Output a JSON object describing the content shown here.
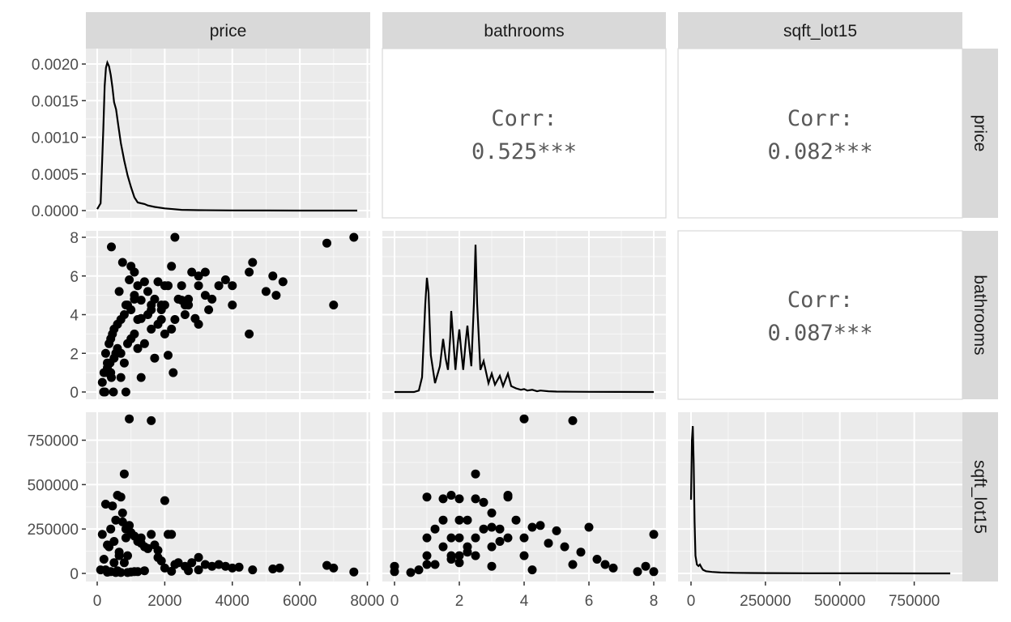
{
  "chart_data": {
    "type": "scatter",
    "layout": "pairs-matrix",
    "variables": [
      "price",
      "bathrooms",
      "sqft_lot15"
    ],
    "panel_background": "#ebebeb",
    "strip_background": "#d9d9d9",
    "grid_color": "#ffffff",
    "point_color": "#000000",
    "corr_text_color": "#595959",
    "axes": {
      "price": {
        "lim": [
          0,
          7700
        ],
        "ticks": [
          0,
          2000,
          4000,
          6000,
          8000
        ],
        "tick_labels": [
          "0",
          "2000",
          "4000",
          "6000",
          "8000"
        ],
        "density_lim": [
          0,
          0.0021
        ],
        "density_ticks": [
          0,
          0.0005,
          0.001,
          0.0015,
          0.002
        ],
        "density_tick_labels": [
          "0.0000",
          "0.0005",
          "0.0010",
          "0.0015",
          "0.0020"
        ]
      },
      "bathrooms": {
        "lim": [
          0,
          8
        ],
        "ticks": [
          0,
          2,
          4,
          6,
          8
        ],
        "tick_labels": [
          "0",
          "2",
          "4",
          "6",
          "8"
        ]
      },
      "sqft_lot15": {
        "lim": [
          0,
          871000
        ],
        "ticks": [
          0,
          250000,
          500000,
          750000
        ],
        "tick_labels": [
          "0",
          "250000",
          "500000",
          "750000"
        ]
      }
    },
    "correlations": [
      {
        "row": "price",
        "col": "bathrooms",
        "label": "Corr:",
        "value": "0.525***"
      },
      {
        "row": "price",
        "col": "sqft_lot15",
        "label": "Corr:",
        "value": "0.082***"
      },
      {
        "row": "bathrooms",
        "col": "sqft_lot15",
        "label": "Corr:",
        "value": "0.087***"
      }
    ],
    "densities": {
      "price": {
        "x": [
          0,
          100,
          180,
          220,
          260,
          300,
          350,
          400,
          450,
          500,
          560,
          620,
          700,
          800,
          900,
          1000,
          1100,
          1200,
          1300,
          1400,
          1500,
          1700,
          2000,
          2500,
          3000,
          4000,
          5000,
          6000,
          7700
        ],
        "y": [
          2e-05,
          0.0001,
          0.0011,
          0.0017,
          0.00195,
          0.00202,
          0.00197,
          0.00185,
          0.00168,
          0.00148,
          0.00138,
          0.00118,
          0.00092,
          0.00068,
          0.00048,
          0.00032,
          0.00018,
          0.00011,
          0.0001,
          9e-05,
          7e-05,
          5e-05,
          3e-05,
          1e-05,
          5e-06,
          2e-06,
          1e-06,
          5e-07,
          0
        ]
      },
      "bathrooms": {
        "x": [
          0,
          0.6,
          0.75,
          0.85,
          0.95,
          1.0,
          1.05,
          1.12,
          1.25,
          1.4,
          1.5,
          1.58,
          1.65,
          1.72,
          1.75,
          1.8,
          1.88,
          1.95,
          2.0,
          2.05,
          2.12,
          2.2,
          2.25,
          2.3,
          2.37,
          2.45,
          2.5,
          2.55,
          2.65,
          2.75,
          2.8,
          2.9,
          3.0,
          3.1,
          3.25,
          3.35,
          3.5,
          3.6,
          3.75,
          3.9,
          4.0,
          4.1,
          4.25,
          4.4,
          4.5,
          4.75,
          5.0,
          5.5,
          6.0,
          8.0
        ],
        "y": [
          0,
          0.0,
          0.02,
          0.2,
          1.2,
          1.55,
          1.35,
          0.5,
          0.12,
          0.35,
          0.72,
          0.45,
          0.3,
          0.75,
          1.1,
          0.8,
          0.3,
          0.65,
          0.85,
          0.6,
          0.3,
          0.7,
          0.9,
          0.65,
          0.35,
          1.2,
          2.0,
          1.2,
          0.3,
          0.42,
          0.32,
          0.12,
          0.25,
          0.1,
          0.22,
          0.08,
          0.25,
          0.08,
          0.05,
          0.03,
          0.04,
          0.02,
          0.03,
          0.01,
          0.02,
          0.01,
          0.005,
          0.003,
          0.002,
          0
        ]
      },
      "sqft_lot15": {
        "x": [
          0,
          3000,
          6000,
          9000,
          12000,
          15000,
          20000,
          25000,
          30000,
          35000,
          40000,
          50000,
          70000,
          100000,
          150000,
          200000,
          250000,
          400000,
          600000,
          871000
        ],
        "y": [
          0.5,
          0.9,
          1.0,
          0.75,
          0.35,
          0.12,
          0.06,
          0.05,
          0.06,
          0.04,
          0.025,
          0.015,
          0.01,
          0.006,
          0.004,
          0.003,
          0.002,
          0.001,
          0.0005,
          0
        ]
      }
    },
    "scatter": {
      "bathrooms_vs_price": {
        "x": [
          150,
          190,
          230,
          300,
          380,
          420,
          480,
          550,
          650,
          750,
          850,
          950,
          1000,
          1100,
          1200,
          1300,
          1400,
          1500,
          1600,
          1700,
          1800,
          1900,
          2000,
          2100,
          2200,
          2300,
          2400,
          2500,
          2600,
          2700,
          2800,
          2900,
          3000,
          3200,
          3400,
          3600,
          3800,
          4000,
          4500,
          5000,
          5200,
          5500,
          6800,
          7000,
          7600,
          200,
          300,
          400,
          500,
          600,
          700,
          800,
          900,
          1000,
          1100,
          1200,
          1400,
          1600,
          1800,
          2000,
          2300,
          2600,
          3000,
          3300,
          4000,
          250,
          350,
          450,
          600,
          800,
          1000,
          1200,
          1500,
          2000,
          2500,
          300,
          400,
          500,
          700,
          900,
          1100,
          1300,
          1600,
          1900,
          2200,
          2700,
          3200,
          420,
          700,
          850,
          1300,
          2250,
          4600,
          5300,
          4500,
          1700,
          1900,
          1100,
          3000,
          2100
        ],
        "y": [
          0.5,
          0,
          0,
          1,
          1.5,
          7.5,
          0,
          2,
          5.2,
          6.7,
          4.5,
          5.8,
          6.5,
          4.8,
          5.5,
          3.8,
          5.7,
          5.2,
          4.5,
          4.8,
          5.7,
          4.5,
          5.5,
          5.5,
          6.5,
          8,
          4.8,
          5.5,
          4.5,
          4.8,
          6.2,
          3.8,
          5.5,
          6.2,
          4.8,
          5.5,
          5.8,
          5.5,
          3,
          5.2,
          6,
          5.7,
          7.7,
          4.5,
          8,
          1,
          1.5,
          1,
          1.75,
          2.25,
          2,
          1.5,
          2.5,
          2.75,
          3,
          2.25,
          2.5,
          3.25,
          3.5,
          3,
          3.75,
          4,
          3.5,
          4.25,
          4.5,
          2,
          2.5,
          3,
          3.5,
          4,
          4.25,
          3.75,
          4,
          4.5,
          4.75,
          1.25,
          2.75,
          3.25,
          3.75,
          4.5,
          5,
          4.75,
          4.25,
          3.75,
          3.25,
          4.5,
          5,
          0.75,
          0.75,
          0,
          0.75,
          1,
          6.7,
          5,
          6.2,
          1.75,
          4.25,
          6.2,
          6,
          1.9
        ]
      },
      "sqft_lot15_vs_price": {
        "x": [
          100,
          150,
          200,
          250,
          300,
          350,
          400,
          450,
          500,
          550,
          600,
          650,
          700,
          750,
          800,
          850,
          900,
          950,
          1000,
          1100,
          1200,
          1300,
          1400,
          1500,
          1600,
          1700,
          1800,
          1900,
          2000,
          2100,
          2200,
          2300,
          2400,
          2600,
          2800,
          3000,
          3200,
          3400,
          3600,
          3800,
          4000,
          4200,
          4600,
          5200,
          5400,
          6800,
          7000,
          7600,
          950,
          1600,
          800,
          2000,
          400,
          600,
          700,
          550,
          300,
          250,
          1200,
          1400,
          1000,
          900,
          1100,
          2200,
          2700,
          3000,
          500,
          650,
          1300,
          1500,
          1800,
          750,
          850
        ],
        "y": [
          20000,
          220000,
          80000,
          390000,
          160000,
          150000,
          250000,
          380000,
          180000,
          300000,
          440000,
          120000,
          430000,
          290000,
          560000,
          200000,
          100000,
          270000,
          230000,
          210000,
          180000,
          170000,
          150000,
          140000,
          220000,
          160000,
          90000,
          70000,
          410000,
          220000,
          220000,
          50000,
          60000,
          40000,
          60000,
          90000,
          50000,
          40000,
          50000,
          40000,
          30000,
          35000,
          20000,
          25000,
          30000,
          45000,
          30000,
          8000,
          870000,
          860000,
          60000,
          30000,
          10000,
          15000,
          5000,
          5000,
          7000,
          20000,
          10000,
          15000,
          8000,
          5000,
          10000,
          12000,
          15000,
          20000,
          60000,
          100000,
          200000,
          140000,
          130000,
          340000,
          250000
        ]
      },
      "sqft_lot15_vs_bathrooms": {
        "x": [
          0,
          0,
          0.5,
          0.75,
          1,
          1,
          1,
          1,
          1.25,
          1.5,
          1.5,
          1.5,
          1.75,
          1.75,
          1.75,
          2,
          2,
          2,
          2,
          2.25,
          2.25,
          2.5,
          2.5,
          2.5,
          2.75,
          2.75,
          3,
          3,
          3,
          3.25,
          3.25,
          3.5,
          3.5,
          3.5,
          3.75,
          4,
          4,
          4.25,
          4.5,
          4.75,
          5,
          5.25,
          5.5,
          5.75,
          6,
          6.25,
          6.5,
          6.75,
          7.5,
          7.75,
          8,
          8,
          4,
          5.5,
          2.5,
          1.75,
          1.25,
          2,
          3,
          4.25,
          2.25
        ],
        "y": [
          10000,
          40000,
          5000,
          20000,
          200000,
          430000,
          100000,
          50000,
          250000,
          420000,
          300000,
          150000,
          440000,
          200000,
          100000,
          420000,
          300000,
          200000,
          100000,
          300000,
          150000,
          560000,
          420000,
          200000,
          400000,
          250000,
          340000,
          260000,
          150000,
          250000,
          180000,
          440000,
          430000,
          200000,
          300000,
          200000,
          100000,
          260000,
          270000,
          170000,
          240000,
          150000,
          50000,
          120000,
          260000,
          80000,
          50000,
          30000,
          10000,
          40000,
          220000,
          10000,
          870000,
          860000,
          100000,
          80000,
          50000,
          60000,
          40000,
          20000,
          120000
        ]
      }
    }
  }
}
